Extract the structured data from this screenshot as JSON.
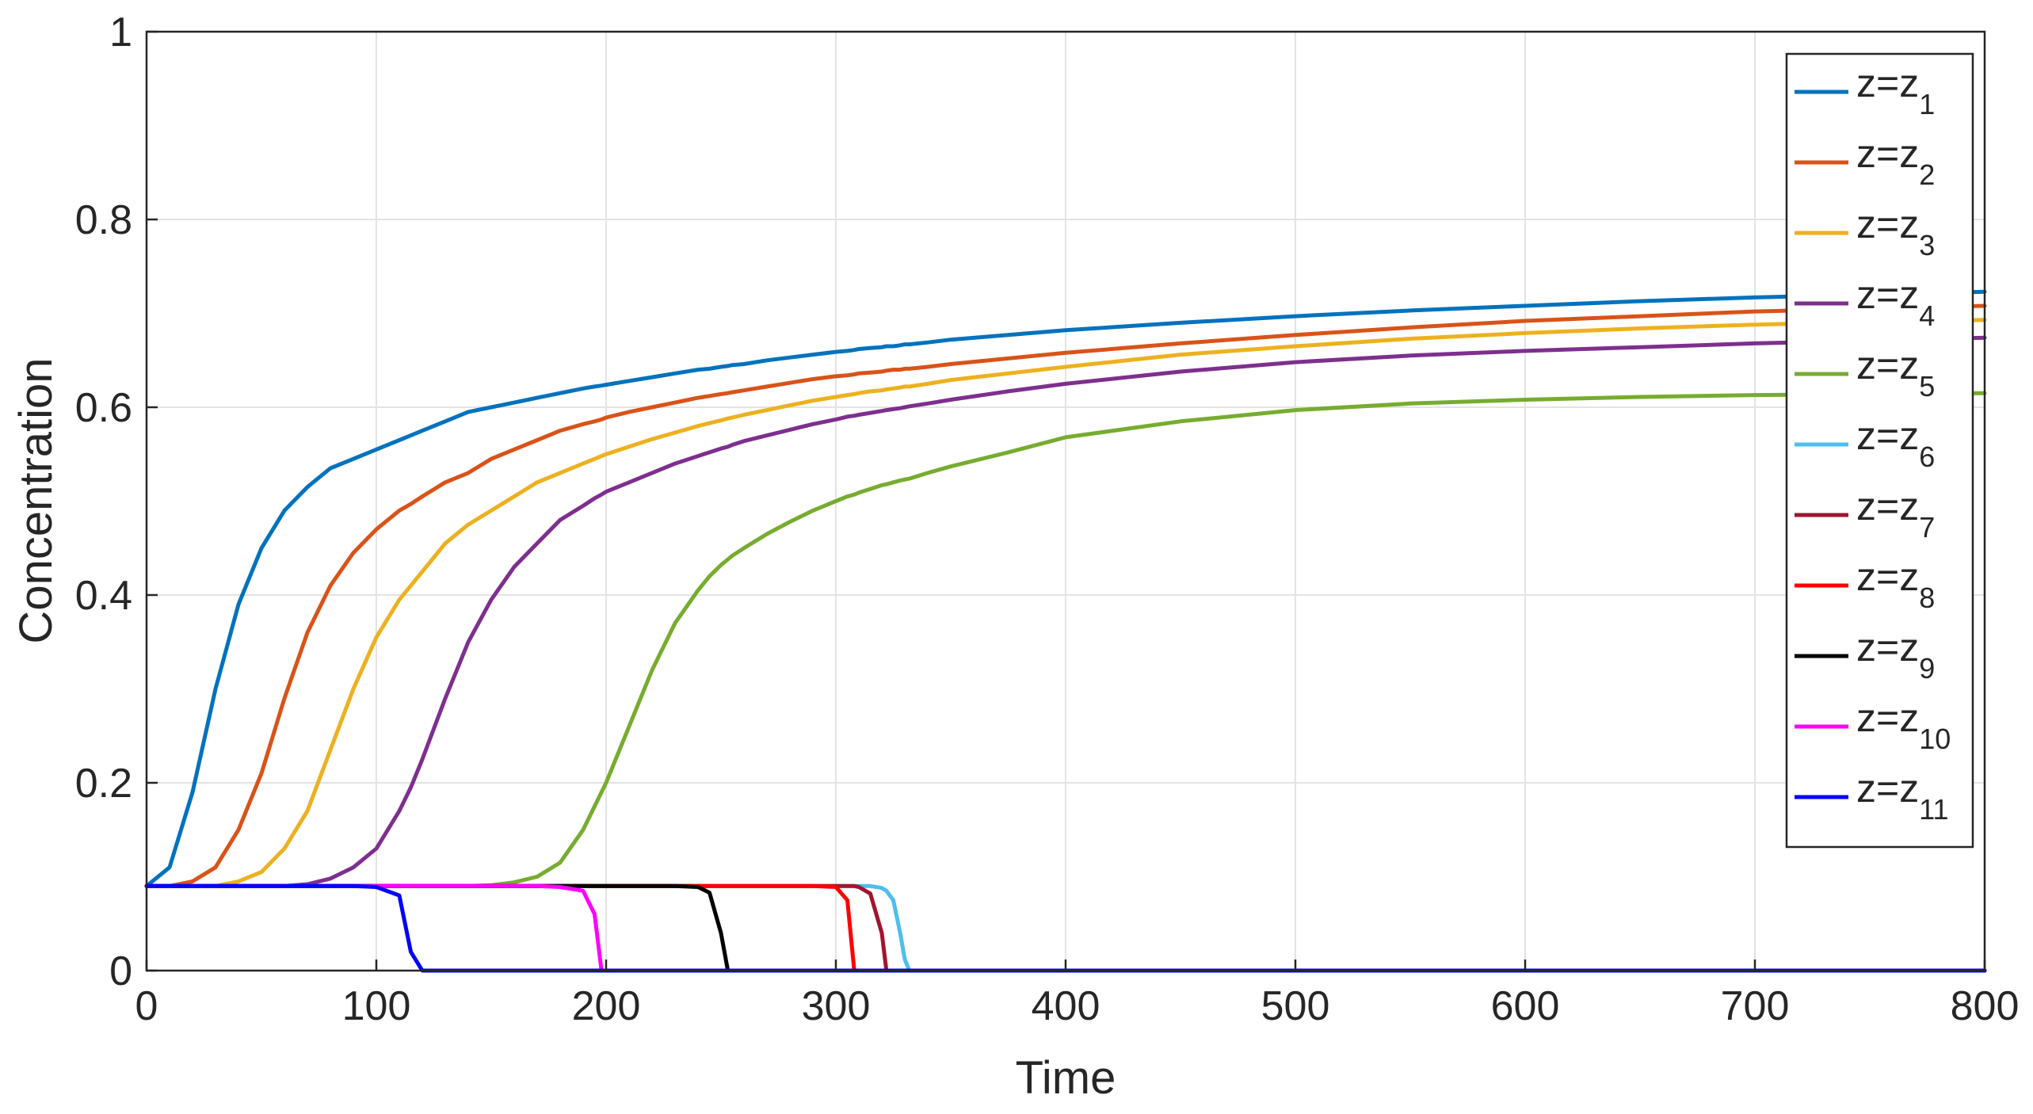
{
  "chart_data": {
    "type": "line",
    "title": "",
    "xlabel": "Time",
    "ylabel": "Concentration",
    "xlim": [
      0,
      800
    ],
    "ylim": [
      0,
      1
    ],
    "xticks": [
      "0",
      "100",
      "200",
      "300",
      "400",
      "500",
      "600",
      "700",
      "800"
    ],
    "yticks": [
      "0",
      "0.2",
      "0.4",
      "0.6",
      "0.8",
      "1"
    ],
    "grid": true,
    "legend_position": "top-right",
    "x": [
      0,
      10,
      20,
      30,
      40,
      50,
      60,
      70,
      80,
      90,
      100,
      110,
      115,
      120,
      130,
      140,
      150,
      160,
      170,
      180,
      190,
      195,
      198,
      200,
      210,
      220,
      230,
      240,
      245,
      250,
      253,
      255,
      260,
      270,
      280,
      290,
      300,
      305,
      308,
      310,
      315,
      320,
      322,
      325,
      328,
      330,
      332,
      340,
      350,
      375,
      400,
      450,
      500,
      550,
      600,
      650,
      700,
      750,
      800
    ],
    "series": [
      {
        "name": "z=z",
        "sub": "1",
        "color": "#0072BD",
        "values": [
          0.09,
          0.11,
          0.19,
          0.3,
          0.39,
          0.45,
          0.49,
          0.515,
          0.535,
          0.545,
          0.555,
          0.565,
          0.57,
          0.575,
          0.585,
          0.595,
          0.6,
          0.605,
          0.61,
          0.615,
          0.62,
          0.622,
          0.623,
          0.624,
          0.628,
          0.632,
          0.636,
          0.64,
          0.641,
          0.643,
          0.644,
          0.645,
          0.646,
          0.65,
          0.653,
          0.656,
          0.659,
          0.66,
          0.661,
          0.662,
          0.663,
          0.664,
          0.665,
          0.665,
          0.666,
          0.667,
          0.667,
          0.669,
          0.672,
          0.677,
          0.682,
          0.69,
          0.697,
          0.703,
          0.708,
          0.713,
          0.717,
          0.72,
          0.723
        ]
      },
      {
        "name": "z=z",
        "sub": "2",
        "color": "#D95319",
        "values": [
          0.09,
          0.09,
          0.095,
          0.11,
          0.15,
          0.21,
          0.29,
          0.36,
          0.41,
          0.445,
          0.47,
          0.49,
          0.497,
          0.505,
          0.52,
          0.53,
          0.545,
          0.555,
          0.565,
          0.575,
          0.582,
          0.585,
          0.587,
          0.589,
          0.595,
          0.6,
          0.605,
          0.61,
          0.612,
          0.614,
          0.615,
          0.616,
          0.618,
          0.622,
          0.626,
          0.63,
          0.633,
          0.634,
          0.635,
          0.636,
          0.637,
          0.638,
          0.639,
          0.64,
          0.64,
          0.641,
          0.641,
          0.643,
          0.646,
          0.652,
          0.658,
          0.668,
          0.677,
          0.685,
          0.692,
          0.697,
          0.702,
          0.705,
          0.708
        ]
      },
      {
        "name": "z=z",
        "sub": "3",
        "color": "#EDB120",
        "values": [
          0.09,
          0.09,
          0.09,
          0.09,
          0.095,
          0.105,
          0.13,
          0.17,
          0.235,
          0.3,
          0.355,
          0.395,
          0.41,
          0.425,
          0.455,
          0.475,
          0.49,
          0.505,
          0.52,
          0.53,
          0.54,
          0.545,
          0.548,
          0.55,
          0.558,
          0.566,
          0.573,
          0.58,
          0.583,
          0.586,
          0.588,
          0.589,
          0.592,
          0.597,
          0.602,
          0.607,
          0.611,
          0.613,
          0.614,
          0.615,
          0.617,
          0.618,
          0.619,
          0.62,
          0.621,
          0.622,
          0.622,
          0.625,
          0.629,
          0.636,
          0.643,
          0.656,
          0.665,
          0.673,
          0.679,
          0.684,
          0.688,
          0.691,
          0.693
        ]
      },
      {
        "name": "z=z",
        "sub": "4",
        "color": "#7E2F8E",
        "values": [
          0.09,
          0.09,
          0.09,
          0.09,
          0.09,
          0.09,
          0.09,
          0.092,
          0.098,
          0.11,
          0.13,
          0.17,
          0.195,
          0.225,
          0.29,
          0.35,
          0.395,
          0.43,
          0.455,
          0.48,
          0.495,
          0.503,
          0.507,
          0.51,
          0.52,
          0.53,
          0.54,
          0.548,
          0.552,
          0.556,
          0.558,
          0.56,
          0.564,
          0.57,
          0.576,
          0.582,
          0.587,
          0.59,
          0.591,
          0.592,
          0.594,
          0.596,
          0.597,
          0.598,
          0.599,
          0.6,
          0.601,
          0.604,
          0.608,
          0.617,
          0.625,
          0.638,
          0.648,
          0.655,
          0.66,
          0.664,
          0.668,
          0.671,
          0.674
        ]
      },
      {
        "name": "z=z",
        "sub": "5",
        "color": "#77AC30",
        "values": [
          0.09,
          0.09,
          0.09,
          0.09,
          0.09,
          0.09,
          0.09,
          0.09,
          0.09,
          0.09,
          0.09,
          0.09,
          0.09,
          0.09,
          0.09,
          0.09,
          0.091,
          0.094,
          0.1,
          0.115,
          0.15,
          0.175,
          0.19,
          0.2,
          0.26,
          0.32,
          0.37,
          0.405,
          0.42,
          0.432,
          0.438,
          0.442,
          0.45,
          0.465,
          0.478,
          0.49,
          0.5,
          0.505,
          0.507,
          0.509,
          0.513,
          0.517,
          0.518,
          0.52,
          0.522,
          0.523,
          0.524,
          0.53,
          0.537,
          0.552,
          0.568,
          0.585,
          0.597,
          0.604,
          0.608,
          0.611,
          0.613,
          0.614,
          0.615
        ]
      },
      {
        "name": "z=z",
        "sub": "6",
        "color": "#4DBEEE",
        "values": [
          0.09,
          0.09,
          0.09,
          0.09,
          0.09,
          0.09,
          0.09,
          0.09,
          0.09,
          0.09,
          0.09,
          0.09,
          0.09,
          0.09,
          0.09,
          0.09,
          0.09,
          0.09,
          0.09,
          0.09,
          0.09,
          0.09,
          0.09,
          0.09,
          0.09,
          0.09,
          0.09,
          0.09,
          0.09,
          0.09,
          0.09,
          0.09,
          0.09,
          0.09,
          0.09,
          0.09,
          0.09,
          0.09,
          0.09,
          0.09,
          0.09,
          0.088,
          0.085,
          0.075,
          0.04,
          0.012,
          0.0,
          0.0,
          0.0,
          0.0,
          0.0,
          0.0,
          0.0,
          0.0,
          0.0,
          0.0,
          0.0,
          0.0,
          0.0
        ]
      },
      {
        "name": "z=z",
        "sub": "7",
        "color": "#A2142F",
        "values": [
          0.09,
          0.09,
          0.09,
          0.09,
          0.09,
          0.09,
          0.09,
          0.09,
          0.09,
          0.09,
          0.09,
          0.09,
          0.09,
          0.09,
          0.09,
          0.09,
          0.09,
          0.09,
          0.09,
          0.09,
          0.09,
          0.09,
          0.09,
          0.09,
          0.09,
          0.09,
          0.09,
          0.09,
          0.09,
          0.09,
          0.09,
          0.09,
          0.09,
          0.09,
          0.09,
          0.09,
          0.09,
          0.09,
          0.09,
          0.089,
          0.082,
          0.04,
          0.0,
          0.0,
          0.0,
          0.0,
          0.0,
          0.0,
          0.0,
          0.0,
          0.0,
          0.0,
          0.0,
          0.0,
          0.0,
          0.0,
          0.0,
          0.0,
          0.0
        ]
      },
      {
        "name": "z=z",
        "sub": "8",
        "color": "#FF0000",
        "values": [
          0.09,
          0.09,
          0.09,
          0.09,
          0.09,
          0.09,
          0.09,
          0.09,
          0.09,
          0.09,
          0.09,
          0.09,
          0.09,
          0.09,
          0.09,
          0.09,
          0.09,
          0.09,
          0.09,
          0.09,
          0.09,
          0.09,
          0.09,
          0.09,
          0.09,
          0.09,
          0.09,
          0.09,
          0.09,
          0.09,
          0.09,
          0.09,
          0.09,
          0.09,
          0.09,
          0.09,
          0.089,
          0.075,
          0.0,
          0.0,
          0.0,
          0.0,
          0.0,
          0.0,
          0.0,
          0.0,
          0.0,
          0.0,
          0.0,
          0.0,
          0.0,
          0.0,
          0.0,
          0.0,
          0.0,
          0.0,
          0.0,
          0.0,
          0.0
        ]
      },
      {
        "name": "z=z",
        "sub": "9",
        "color": "#000000",
        "values": [
          0.09,
          0.09,
          0.09,
          0.09,
          0.09,
          0.09,
          0.09,
          0.09,
          0.09,
          0.09,
          0.09,
          0.09,
          0.09,
          0.09,
          0.09,
          0.09,
          0.09,
          0.09,
          0.09,
          0.09,
          0.09,
          0.09,
          0.09,
          0.09,
          0.09,
          0.09,
          0.09,
          0.089,
          0.083,
          0.04,
          0.0,
          0.0,
          0.0,
          0.0,
          0.0,
          0.0,
          0.0,
          0.0,
          0.0,
          0.0,
          0.0,
          0.0,
          0.0,
          0.0,
          0.0,
          0.0,
          0.0,
          0.0,
          0.0,
          0.0,
          0.0,
          0.0,
          0.0,
          0.0,
          0.0,
          0.0,
          0.0,
          0.0,
          0.0
        ]
      },
      {
        "name": "z=z",
        "sub": "10",
        "color": "#FF00FF",
        "values": [
          0.09,
          0.09,
          0.09,
          0.09,
          0.09,
          0.09,
          0.09,
          0.09,
          0.09,
          0.09,
          0.09,
          0.09,
          0.09,
          0.09,
          0.09,
          0.09,
          0.09,
          0.09,
          0.09,
          0.089,
          0.085,
          0.06,
          0.0,
          0.0,
          0.0,
          0.0,
          0.0,
          0.0,
          0.0,
          0.0,
          0.0,
          0.0,
          0.0,
          0.0,
          0.0,
          0.0,
          0.0,
          0.0,
          0.0,
          0.0,
          0.0,
          0.0,
          0.0,
          0.0,
          0.0,
          0.0,
          0.0,
          0.0,
          0.0,
          0.0,
          0.0,
          0.0,
          0.0,
          0.0,
          0.0,
          0.0,
          0.0,
          0.0,
          0.0
        ]
      },
      {
        "name": "z=z",
        "sub": "11",
        "color": "#0000FF",
        "values": [
          0.09,
          0.09,
          0.09,
          0.09,
          0.09,
          0.09,
          0.09,
          0.09,
          0.09,
          0.09,
          0.089,
          0.08,
          0.02,
          0.0,
          0.0,
          0.0,
          0.0,
          0.0,
          0.0,
          0.0,
          0.0,
          0.0,
          0.0,
          0.0,
          0.0,
          0.0,
          0.0,
          0.0,
          0.0,
          0.0,
          0.0,
          0.0,
          0.0,
          0.0,
          0.0,
          0.0,
          0.0,
          0.0,
          0.0,
          0.0,
          0.0,
          0.0,
          0.0,
          0.0,
          0.0,
          0.0,
          0.0,
          0.0,
          0.0,
          0.0,
          0.0,
          0.0,
          0.0,
          0.0,
          0.0,
          0.0,
          0.0,
          0.0,
          0.0
        ]
      }
    ]
  }
}
